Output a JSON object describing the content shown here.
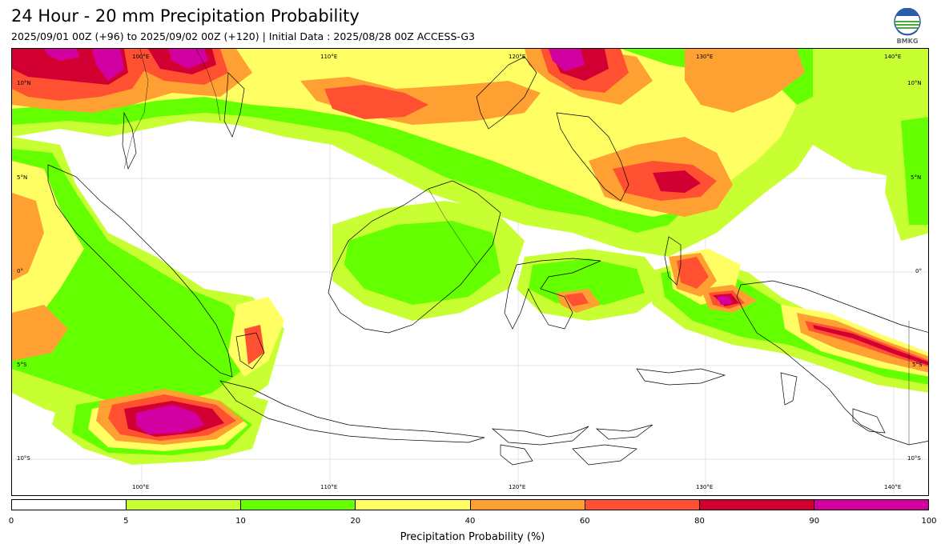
{
  "header": {
    "title": "24 Hour - 20 mm Precipitation Probability",
    "subtitle": "2025/09/01 00Z (+96) to 2025/09/02 00Z (+120) | Initial Data : 2025/08/28 00Z ACCESS-G3"
  },
  "logo": {
    "icon": "bmkg-logo",
    "text": "BMKG"
  },
  "map": {
    "region": "Indonesia / Maritime Continent",
    "lon_range": [
      95,
      144
    ],
    "lat_range": [
      -12,
      12
    ],
    "lon_ticks": [
      "100°E",
      "110°E",
      "120°E",
      "130°E",
      "140°E"
    ],
    "lat_ticks": [
      "10°N",
      "5°N",
      "0°",
      "5°S",
      "10°S"
    ],
    "grid": true
  },
  "colorbar": {
    "label": "Precipitation Probability (%)",
    "boundaries": [
      "0",
      "5",
      "10",
      "20",
      "40",
      "60",
      "80",
      "90",
      "100"
    ],
    "colors": [
      "#ffffff",
      "#c8ff32",
      "#64ff00",
      "#ffff64",
      "#ffa032",
      "#ff5032",
      "#d20032",
      "#d200a0"
    ]
  }
}
